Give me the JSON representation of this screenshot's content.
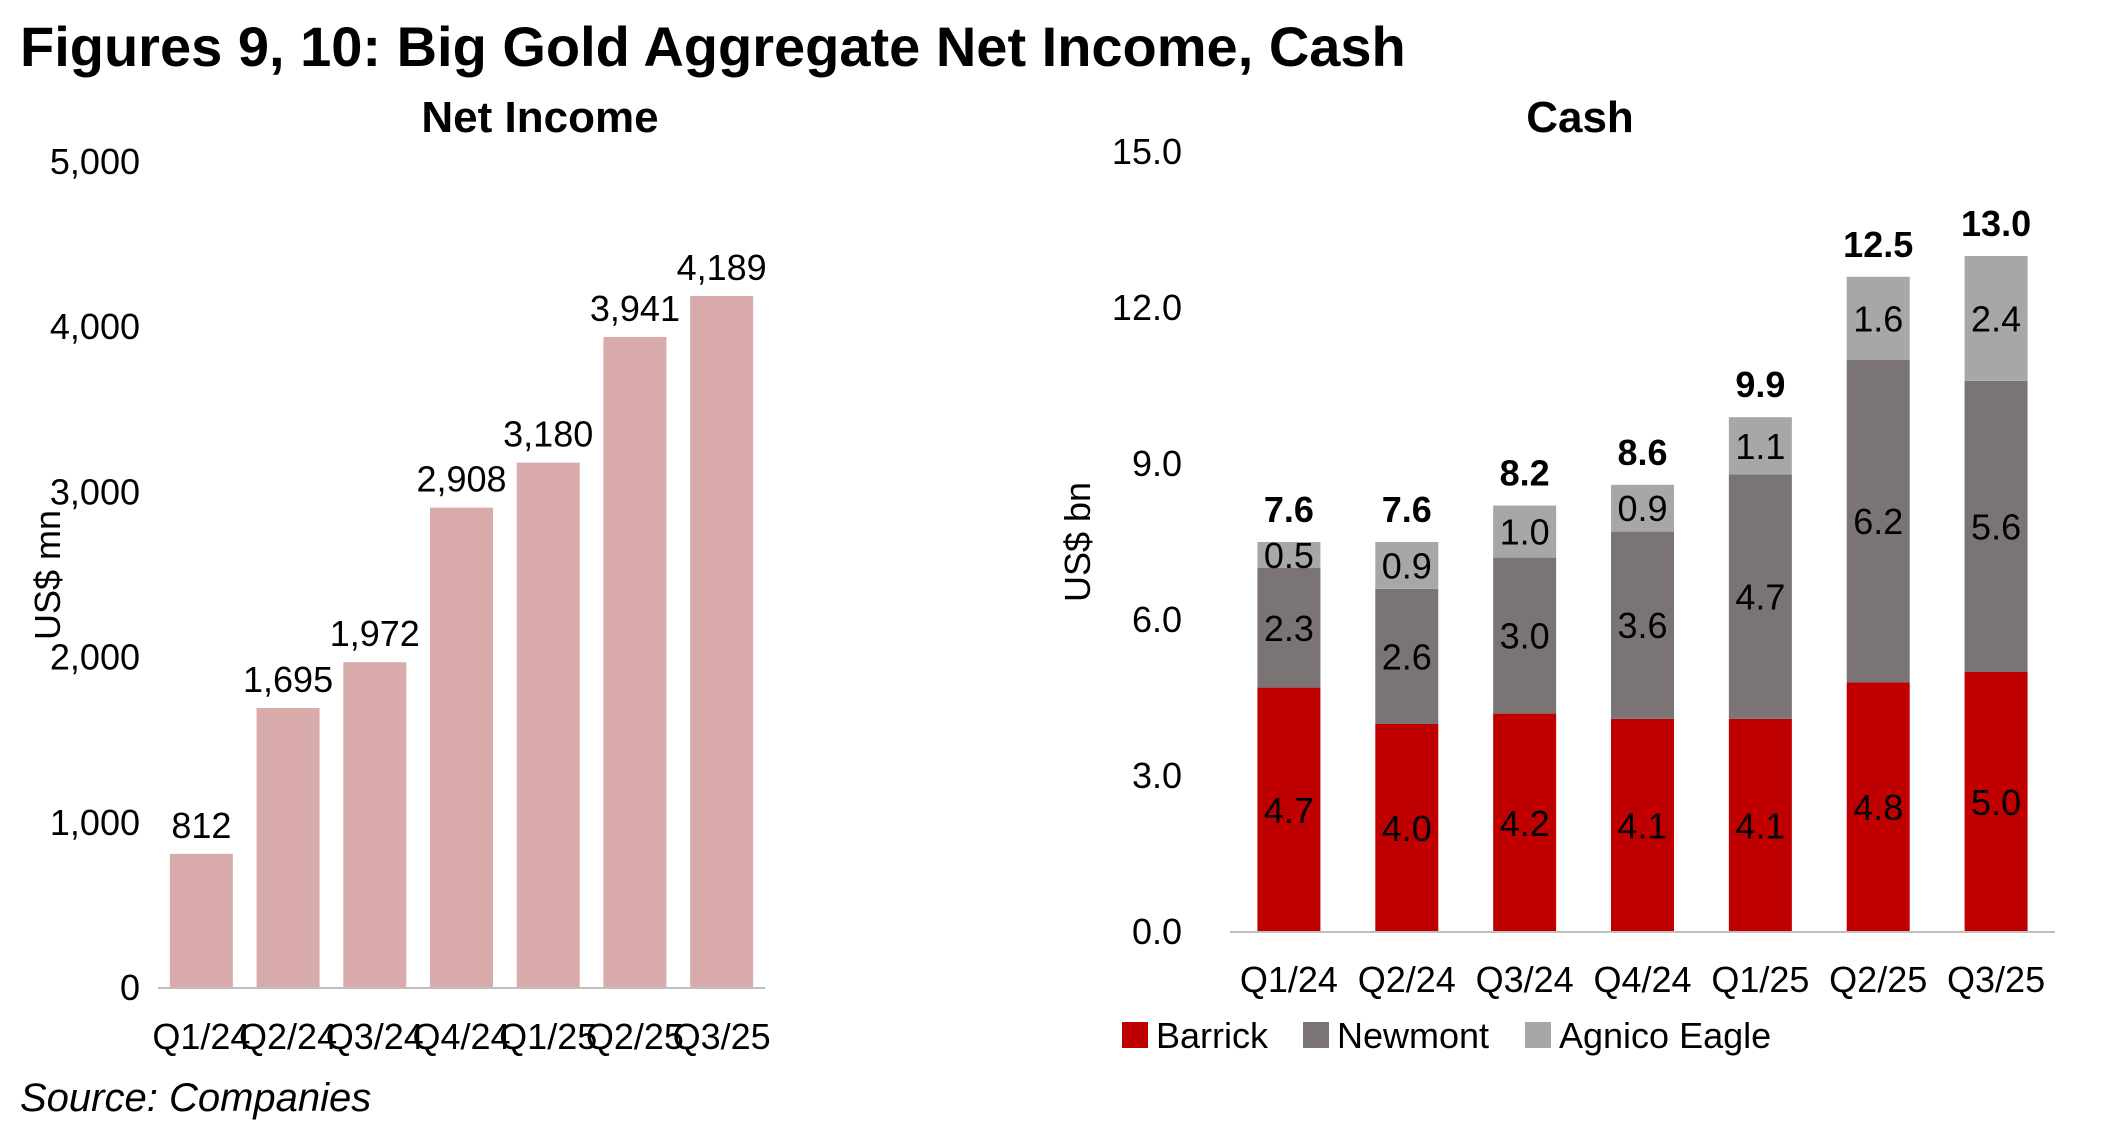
{
  "page": {
    "title": "Figures 9, 10: Big Gold Aggregate Net Income, Cash",
    "source": "Source: Companies"
  },
  "chart_data": [
    {
      "type": "bar",
      "title": "Net Income",
      "xlabel": "",
      "ylabel": "US$ mn",
      "ylim": [
        0,
        5000
      ],
      "yticks": [
        0,
        1000,
        2000,
        3000,
        4000,
        5000
      ],
      "ytick_labels": [
        "0",
        "1,000",
        "2,000",
        "3,000",
        "4,000",
        "5,000"
      ],
      "categories": [
        "Q1/24",
        "Q2/24",
        "Q3/24",
        "Q4/24",
        "Q1/25",
        "Q2/25",
        "Q3/25"
      ],
      "values": [
        812,
        1695,
        1972,
        2908,
        3180,
        3941,
        4189
      ],
      "value_labels": [
        "812",
        "1,695",
        "1,972",
        "2,908",
        "3,180",
        "3,941",
        "4,189"
      ],
      "color": "#d8aaa9",
      "grid": false,
      "legend": "none"
    },
    {
      "type": "bar",
      "stacked": true,
      "title": "Cash",
      "xlabel": "",
      "ylabel": "US$ bn",
      "ylim": [
        0,
        15
      ],
      "yticks": [
        0,
        3,
        6,
        9,
        12,
        15
      ],
      "ytick_labels": [
        "0.0",
        "3.0",
        "6.0",
        "9.0",
        "12.0",
        "15.0"
      ],
      "categories": [
        "Q1/24",
        "Q2/24",
        "Q3/24",
        "Q4/24",
        "Q1/25",
        "Q2/25",
        "Q3/25"
      ],
      "series": [
        {
          "name": "Barrick",
          "color": "#c00000",
          "values": [
            4.7,
            4.0,
            4.2,
            4.1,
            4.1,
            4.8,
            5.0
          ],
          "labels": [
            "4.7",
            "4.0",
            "4.2",
            "4.1",
            "4.1",
            "4.8",
            "5.0"
          ]
        },
        {
          "name": "Newmont",
          "color": "#7a7574",
          "values": [
            2.3,
            2.6,
            3.0,
            3.6,
            4.7,
            6.2,
            5.6
          ],
          "labels": [
            "2.3",
            "2.6",
            "3.0",
            "3.6",
            "4.7",
            "6.2",
            "5.6"
          ]
        },
        {
          "name": "Agnico Eagle",
          "color": "#a7a7a7",
          "values": [
            0.5,
            0.9,
            1.0,
            0.9,
            1.1,
            1.6,
            2.4
          ],
          "labels": [
            "0.5",
            "0.9",
            "1.0",
            "0.9",
            "1.1",
            "1.6",
            "2.4"
          ]
        }
      ],
      "totals": [
        7.6,
        7.6,
        8.2,
        8.6,
        9.9,
        12.5,
        13.0
      ],
      "total_labels": [
        "7.6",
        "7.6",
        "8.2",
        "8.6",
        "9.9",
        "12.5",
        "13.0"
      ],
      "grid": false,
      "legend": "bottom"
    }
  ]
}
